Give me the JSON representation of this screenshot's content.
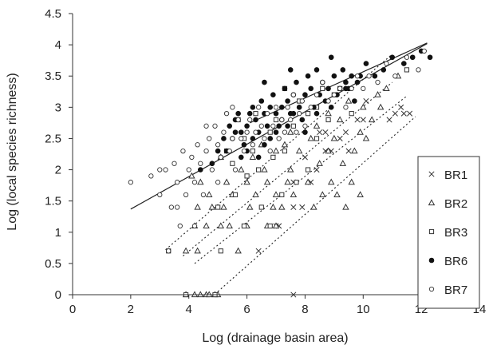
{
  "chart_data": {
    "type": "scatter",
    "title": "",
    "xlabel": "Log (drainage basin area)",
    "ylabel": "Log (local species richness)",
    "xlim": [
      0,
      14
    ],
    "ylim": [
      0,
      4.5
    ],
    "xticks": [
      0,
      2,
      4,
      6,
      8,
      10,
      12,
      14
    ],
    "yticks": [
      0,
      0.5,
      1,
      1.5,
      2,
      2.5,
      3,
      3.5,
      4,
      4.5
    ],
    "xtick_labels": [
      "0",
      "2",
      "4",
      "6",
      "8",
      "10",
      "12",
      "14"
    ],
    "ytick_labels": [
      "0",
      "0.5",
      "1",
      "1.5",
      "2",
      "2.5",
      "3",
      "3.5",
      "4",
      "4.5"
    ],
    "grid": false,
    "legend_position": "right",
    "series": [
      {
        "name": "BR1",
        "marker": "x",
        "points": [
          [
            6.4,
            0.7
          ],
          [
            7.1,
            1.1
          ],
          [
            7.6,
            1.4
          ],
          [
            7.9,
            1.4
          ],
          [
            7.6,
            1.8
          ],
          [
            8.2,
            1.8
          ],
          [
            8.0,
            2.2
          ],
          [
            8.4,
            2.0
          ],
          [
            8.7,
            2.3
          ],
          [
            8.9,
            2.3
          ],
          [
            9.2,
            2.5
          ],
          [
            9.4,
            2.6
          ],
          [
            9.5,
            2.3
          ],
          [
            8.5,
            2.6
          ],
          [
            8.7,
            2.6
          ],
          [
            9.8,
            2.8
          ],
          [
            10.0,
            2.8
          ],
          [
            10.1,
            3.1
          ],
          [
            10.9,
            2.8
          ],
          [
            11.1,
            2.9
          ],
          [
            11.3,
            3.0
          ],
          [
            11.4,
            2.9
          ],
          [
            11.6,
            2.9
          ],
          [
            7.0,
            1.1
          ],
          [
            7.6,
            0.0
          ]
        ]
      },
      {
        "name": "BR2",
        "marker": "triangle",
        "points": [
          [
            3.9,
            0.0
          ],
          [
            4.2,
            0.0
          ],
          [
            4.4,
            0.0
          ],
          [
            4.6,
            0.0
          ],
          [
            4.7,
            0.0
          ],
          [
            4.9,
            0.0
          ],
          [
            5.0,
            0.0
          ],
          [
            3.9,
            0.7
          ],
          [
            4.3,
            0.7
          ],
          [
            5.7,
            0.7
          ],
          [
            4.2,
            1.1
          ],
          [
            4.6,
            1.1
          ],
          [
            5.1,
            1.1
          ],
          [
            5.4,
            1.1
          ],
          [
            6.0,
            1.1
          ],
          [
            6.7,
            1.1
          ],
          [
            7.0,
            1.1
          ],
          [
            4.3,
            1.4
          ],
          [
            4.8,
            1.4
          ],
          [
            5.2,
            1.4
          ],
          [
            6.1,
            1.4
          ],
          [
            6.9,
            1.4
          ],
          [
            7.2,
            1.4
          ],
          [
            8.3,
            1.4
          ],
          [
            9.4,
            1.4
          ],
          [
            4.7,
            1.6
          ],
          [
            5.5,
            1.6
          ],
          [
            6.3,
            1.6
          ],
          [
            7.0,
            1.6
          ],
          [
            7.6,
            1.6
          ],
          [
            8.6,
            1.6
          ],
          [
            9.1,
            1.6
          ],
          [
            9.9,
            1.6
          ],
          [
            4.4,
            1.8
          ],
          [
            5.3,
            1.8
          ],
          [
            6.0,
            1.8
          ],
          [
            6.7,
            1.8
          ],
          [
            7.4,
            1.8
          ],
          [
            8.1,
            1.8
          ],
          [
            8.9,
            1.8
          ],
          [
            9.6,
            1.8
          ],
          [
            4.1,
            1.9
          ],
          [
            5.8,
            2.0
          ],
          [
            6.6,
            2.0
          ],
          [
            7.5,
            2.0
          ],
          [
            8.5,
            2.1
          ],
          [
            9.3,
            2.1
          ],
          [
            5.1,
            2.2
          ],
          [
            6.2,
            2.2
          ],
          [
            7.0,
            2.3
          ],
          [
            7.8,
            2.3
          ],
          [
            8.8,
            2.3
          ],
          [
            9.7,
            2.3
          ],
          [
            10.1,
            2.5
          ],
          [
            6.5,
            2.4
          ],
          [
            7.3,
            2.4
          ],
          [
            8.2,
            2.5
          ],
          [
            9.0,
            2.5
          ],
          [
            9.9,
            2.6
          ],
          [
            10.3,
            2.8
          ],
          [
            10.6,
            3.0
          ],
          [
            7.5,
            2.6
          ],
          [
            8.4,
            2.7
          ],
          [
            9.2,
            2.8
          ],
          [
            10.0,
            3.0
          ],
          [
            10.8,
            3.3
          ],
          [
            11.2,
            3.5
          ],
          [
            8.8,
            2.9
          ],
          [
            9.5,
            3.1
          ],
          [
            10.5,
            3.2
          ]
        ]
      },
      {
        "name": "BR3",
        "marker": "square",
        "points": [
          [
            3.3,
            0.7
          ],
          [
            5.1,
            0.7
          ],
          [
            3.9,
            0.0
          ],
          [
            4.9,
            0.0
          ],
          [
            5.9,
            1.1
          ],
          [
            6.8,
            1.1
          ],
          [
            5.0,
            1.4
          ],
          [
            6.5,
            1.4
          ],
          [
            7.2,
            1.6
          ],
          [
            7.7,
            1.8
          ],
          [
            8.1,
            2.0
          ],
          [
            5.6,
            1.6
          ],
          [
            6.0,
            1.9
          ],
          [
            6.4,
            2.0
          ],
          [
            5.5,
            2.1
          ],
          [
            6.2,
            2.3
          ],
          [
            6.9,
            2.2
          ],
          [
            7.3,
            2.3
          ],
          [
            8.4,
            2.5
          ],
          [
            8.8,
            2.8
          ],
          [
            9.6,
            2.9
          ],
          [
            5.3,
            2.3
          ],
          [
            5.9,
            2.5
          ],
          [
            6.8,
            2.6
          ],
          [
            7.6,
            2.7
          ],
          [
            8.1,
            2.9
          ],
          [
            8.4,
            3.0
          ],
          [
            7.0,
            2.8
          ],
          [
            7.8,
            3.1
          ],
          [
            9.0,
            3.2
          ],
          [
            7.3,
            3.3
          ],
          [
            8.6,
            3.3
          ],
          [
            9.2,
            3.3
          ],
          [
            11.5,
            3.6
          ],
          [
            5.7,
            2.8
          ],
          [
            6.3,
            2.9
          ]
        ]
      },
      {
        "name": "BR6",
        "marker": "filled-circle",
        "points": [
          [
            4.4,
            2.0
          ],
          [
            4.8,
            2.1
          ],
          [
            5.1,
            2.2
          ],
          [
            5.3,
            2.3
          ],
          [
            5.5,
            2.5
          ],
          [
            5.6,
            2.8
          ],
          [
            5.7,
            2.9
          ],
          [
            5.8,
            2.6
          ],
          [
            5.9,
            2.4
          ],
          [
            6.0,
            2.7
          ],
          [
            6.1,
            2.9
          ],
          [
            6.2,
            3.0
          ],
          [
            6.3,
            2.8
          ],
          [
            6.4,
            2.6
          ],
          [
            6.5,
            3.1
          ],
          [
            6.6,
            2.9
          ],
          [
            6.7,
            2.7
          ],
          [
            6.8,
            3.0
          ],
          [
            6.9,
            3.2
          ],
          [
            7.0,
            2.9
          ],
          [
            7.1,
            2.7
          ],
          [
            7.2,
            3.0
          ],
          [
            7.3,
            3.3
          ],
          [
            7.4,
            3.1
          ],
          [
            7.5,
            2.9
          ],
          [
            7.6,
            3.2
          ],
          [
            7.7,
            3.4
          ],
          [
            7.8,
            3.0
          ],
          [
            7.9,
            2.8
          ],
          [
            8.0,
            3.2
          ],
          [
            8.1,
            3.5
          ],
          [
            8.2,
            3.3
          ],
          [
            8.3,
            3.0
          ],
          [
            8.4,
            2.9
          ],
          [
            8.5,
            3.2
          ],
          [
            8.6,
            3.4
          ],
          [
            8.7,
            3.1
          ],
          [
            8.8,
            3.3
          ],
          [
            8.9,
            3.0
          ],
          [
            9.0,
            3.5
          ],
          [
            9.1,
            3.2
          ],
          [
            9.2,
            3.3
          ],
          [
            9.3,
            3.6
          ],
          [
            9.4,
            3.4
          ],
          [
            9.5,
            3.3
          ],
          [
            9.6,
            3.5
          ],
          [
            9.7,
            3.1
          ],
          [
            9.8,
            3.4
          ],
          [
            9.9,
            3.5
          ],
          [
            10.1,
            3.7
          ],
          [
            10.4,
            3.5
          ],
          [
            10.7,
            3.6
          ],
          [
            11.0,
            3.8
          ],
          [
            11.4,
            3.7
          ],
          [
            11.7,
            3.8
          ],
          [
            12.0,
            3.9
          ],
          [
            12.3,
            3.8
          ],
          [
            5.2,
            2.5
          ],
          [
            5.4,
            2.7
          ],
          [
            5.0,
            2.3
          ],
          [
            5.6,
            2.6
          ],
          [
            5.8,
            2.2
          ],
          [
            6.0,
            2.3
          ],
          [
            6.2,
            2.5
          ],
          [
            6.4,
            2.2
          ],
          [
            6.6,
            2.4
          ],
          [
            6.8,
            2.5
          ],
          [
            7.0,
            2.6
          ],
          [
            7.2,
            2.8
          ],
          [
            7.4,
            2.7
          ],
          [
            7.6,
            2.9
          ],
          [
            8.4,
            3.6
          ],
          [
            8.9,
            3.8
          ],
          [
            9.4,
            3.3
          ],
          [
            8.0,
            2.6
          ],
          [
            6.6,
            3.4
          ],
          [
            7.5,
            3.6
          ]
        ]
      },
      {
        "name": "BR7",
        "marker": "open-circle",
        "points": [
          [
            2.0,
            1.8
          ],
          [
            2.7,
            1.9
          ],
          [
            3.0,
            1.6
          ],
          [
            3.2,
            2.0
          ],
          [
            3.4,
            1.4
          ],
          [
            3.5,
            2.1
          ],
          [
            3.6,
            1.8
          ],
          [
            3.7,
            1.1
          ],
          [
            3.8,
            2.3
          ],
          [
            3.9,
            1.6
          ],
          [
            4.0,
            2.0
          ],
          [
            4.1,
            2.2
          ],
          [
            4.2,
            1.8
          ],
          [
            4.3,
            2.4
          ],
          [
            4.4,
            2.1
          ],
          [
            4.5,
            1.6
          ],
          [
            4.6,
            2.3
          ],
          [
            4.7,
            2.5
          ],
          [
            4.8,
            2.0
          ],
          [
            4.9,
            2.7
          ],
          [
            5.0,
            2.4
          ],
          [
            5.1,
            2.2
          ],
          [
            5.2,
            2.6
          ],
          [
            5.3,
            2.9
          ],
          [
            5.4,
            2.3
          ],
          [
            5.5,
            2.5
          ],
          [
            5.6,
            2.0
          ],
          [
            5.7,
            2.8
          ],
          [
            5.8,
            2.5
          ],
          [
            5.9,
            2.3
          ],
          [
            6.0,
            2.6
          ],
          [
            6.1,
            2.8
          ],
          [
            6.2,
            2.4
          ],
          [
            6.3,
            2.6
          ],
          [
            6.4,
            3.0
          ],
          [
            6.5,
            2.7
          ],
          [
            6.6,
            2.5
          ],
          [
            6.7,
            2.9
          ],
          [
            6.8,
            2.3
          ],
          [
            6.9,
            2.7
          ],
          [
            7.0,
            3.0
          ],
          [
            7.1,
            2.5
          ],
          [
            7.2,
            2.8
          ],
          [
            7.3,
            2.6
          ],
          [
            7.4,
            3.0
          ],
          [
            7.5,
            2.8
          ],
          [
            7.6,
            3.2
          ],
          [
            7.7,
            2.6
          ],
          [
            7.8,
            2.9
          ],
          [
            7.9,
            3.1
          ],
          [
            8.0,
            2.7
          ],
          [
            8.2,
            3.0
          ],
          [
            8.4,
            3.2
          ],
          [
            8.6,
            3.4
          ],
          [
            8.8,
            3.1
          ],
          [
            9.0,
            3.2
          ],
          [
            9.2,
            3.3
          ],
          [
            9.4,
            3.0
          ],
          [
            9.6,
            3.3
          ],
          [
            9.8,
            3.5
          ],
          [
            10.0,
            3.3
          ],
          [
            10.2,
            3.5
          ],
          [
            10.5,
            3.4
          ],
          [
            10.8,
            3.7
          ],
          [
            11.1,
            3.5
          ],
          [
            11.5,
            3.8
          ],
          [
            11.9,
            3.6
          ],
          [
            12.1,
            3.9
          ],
          [
            3.3,
            0.7
          ],
          [
            3.6,
            1.4
          ],
          [
            4.2,
            1.1
          ],
          [
            5.0,
            1.8
          ],
          [
            3.0,
            2.0
          ],
          [
            4.6,
            2.7
          ],
          [
            5.5,
            3.0
          ]
        ]
      }
    ],
    "fit_lines": [
      {
        "style": "solid",
        "from": [
          2.0,
          1.37
        ],
        "to": [
          12.2,
          4.02
        ]
      },
      {
        "style": "solid",
        "from": [
          6.1,
          2.75
        ],
        "to": [
          12.2,
          4.03
        ]
      },
      {
        "style": "dotted",
        "from": [
          3.2,
          0.72
        ],
        "to": [
          11.0,
          3.85
        ]
      },
      {
        "style": "dotted",
        "from": [
          3.8,
          0.62
        ],
        "to": [
          11.0,
          3.4
        ]
      },
      {
        "style": "dotted",
        "from": [
          4.2,
          0.5
        ],
        "to": [
          11.5,
          3.18
        ]
      },
      {
        "style": "dotted",
        "from": [
          5.0,
          0.05
        ],
        "to": [
          11.8,
          2.85
        ]
      }
    ]
  }
}
